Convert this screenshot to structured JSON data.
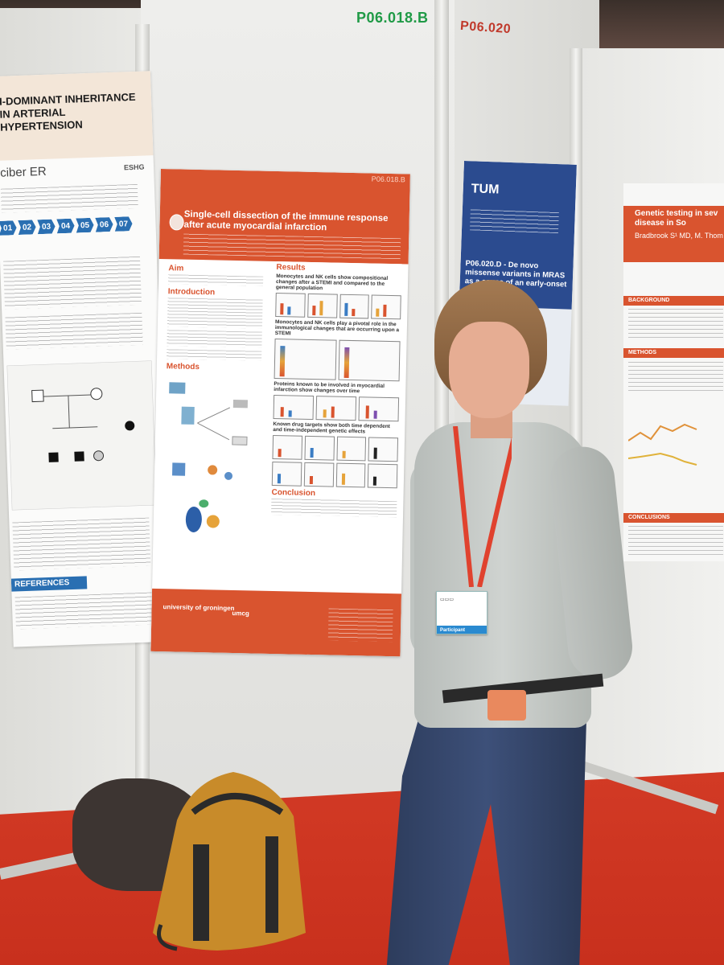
{
  "booth": {
    "code_green": "P06.018.B",
    "code_red": "P06.020"
  },
  "main_poster": {
    "id": "P06.018.B",
    "title": "Single-cell dissection of the immune response after acute myocardial infarction",
    "sections": {
      "aim": "Aim",
      "introduction": "Introduction",
      "methods": "Methods",
      "results": "Results",
      "conclusion": "Conclusion"
    },
    "results_subheads": [
      "Monocytes and NK cells show compositional changes after a STEMI and compared to the general population",
      "Monocytes and NK cells play a pivotal role in the immunological changes that are occurring upon a STEMI",
      "Proteins known to be involved in myocardial infarction show changes over time",
      "Known drug targets show both time dependent and time-independent genetic effects"
    ],
    "footer_logos": [
      "university of groningen",
      "umcg"
    ],
    "colors": {
      "accent": "#d9542f"
    }
  },
  "left_poster": {
    "title": "I-DOMINANT INHERITANCE IN ARTERIAL HYPERTENSION",
    "logo": "ciber ER",
    "logo2": "ESHG",
    "steps": [
      "01",
      "02",
      "03",
      "04",
      "05",
      "06",
      "07"
    ],
    "references_label": "REFERENCES",
    "colors": {
      "accent": "#2a6fb2"
    }
  },
  "mid_poster": {
    "logo": "TUM",
    "title": "P06.020.D - De novo missense variants in MRAS as a cause of an early-onset mTORopathy",
    "colors": {
      "header": "#2b4b8f"
    }
  },
  "right_poster": {
    "title": "Genetic testing in sev disease in So",
    "authors": "Bradbrook S¹ MD, M. Thom",
    "bands": [
      "BACKGROUND",
      "METHODS",
      "CONCLUSIONS"
    ]
  },
  "person": {
    "badge_role": "Participant"
  }
}
